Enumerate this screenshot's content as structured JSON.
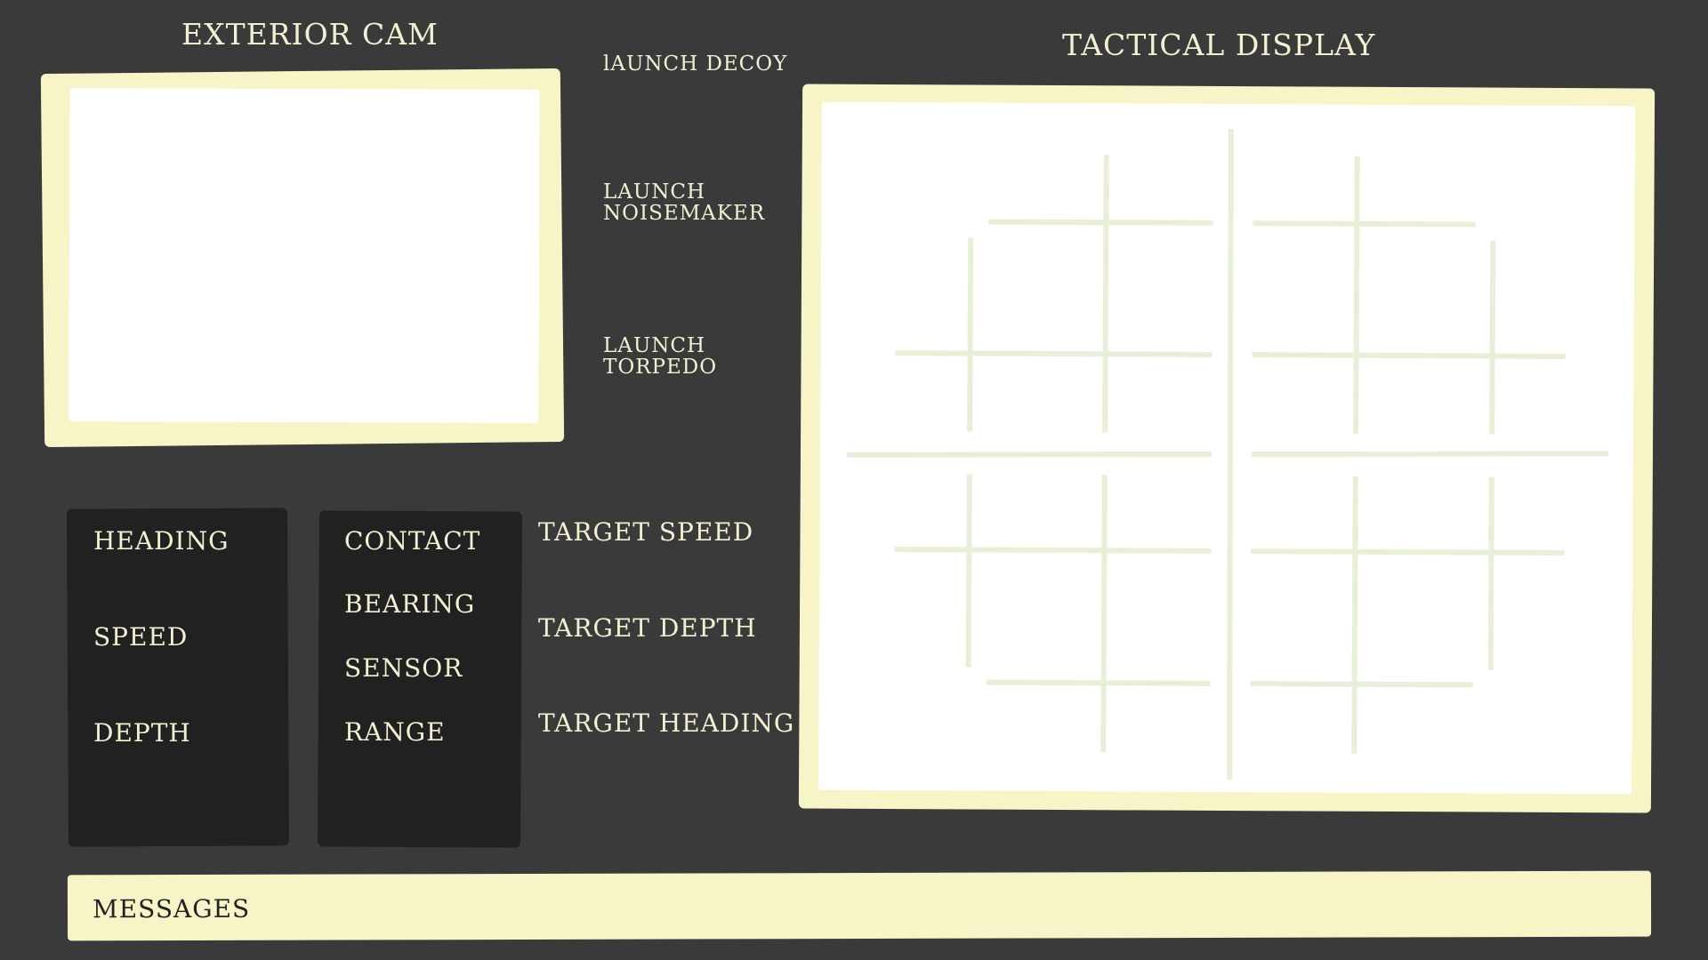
{
  "exterior_cam": {
    "title": "EXTERIOR CAM"
  },
  "launch_buttons": [
    {
      "label": "lAUNCH DECOY"
    },
    {
      "label": "LAUNCH\nNOISEMAKER"
    },
    {
      "label": "LAUNCH\nTORPEDO"
    }
  ],
  "tactical_display": {
    "title": "TACTICAL DISPLAY"
  },
  "nav_panel": {
    "heading": "HEADING",
    "speed": "SPEED",
    "depth": "DEPTH"
  },
  "contact_panel": {
    "contact": "CONTACT",
    "bearing": "BEARING",
    "sensor": "SENSOR",
    "range": "RANGE"
  },
  "target_controls": {
    "speed": "TARGET SPEED",
    "depth": "TARGET DEPTH",
    "heading": "TARGET HEADING"
  },
  "messages": {
    "label": "MESSAGES"
  },
  "colors": {
    "background": "#3a3a3a",
    "frame": "#f7f5c8",
    "screen": "#ffffff",
    "panel": "#212121",
    "text": "#f3f1d2",
    "grid": "#e6efd8"
  }
}
